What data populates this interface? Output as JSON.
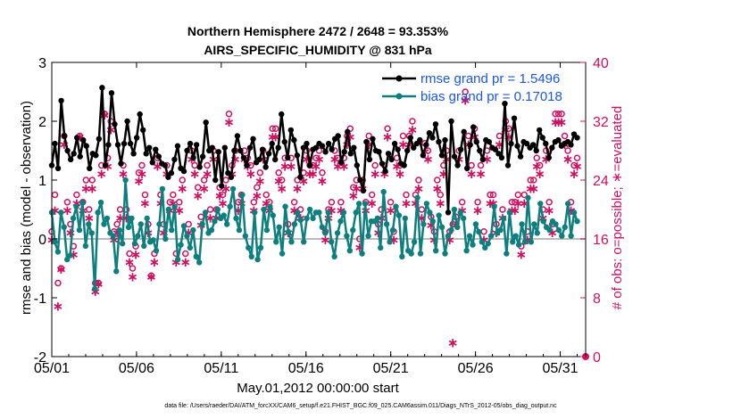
{
  "chart_data": {
    "type": "line",
    "title": "Northern Hemisphere 2472 / 2648 = 93.353%",
    "subtitle": "AIRS_SPECIFIC_HUMIDITY @ 831 hPa",
    "xlabel": "May.01,2012 00:00:00 start",
    "ylabel": "rmse and bias (model - observation)",
    "ylabel_right": "# of obs: o=possible; ∗=evaluated",
    "xlim": [
      0,
      31.5
    ],
    "ylim": [
      -2,
      3
    ],
    "ylim_right": [
      0,
      40
    ],
    "x_tick_labels": [
      "05/01",
      "05/06",
      "05/11",
      "05/16",
      "05/21",
      "05/26",
      "05/31"
    ],
    "y_tick_labels": [
      "-2",
      "-1",
      "0",
      "1",
      "2",
      "3"
    ],
    "y_right_tick_labels": [
      "0",
      "8",
      "16",
      "24",
      "32",
      "40"
    ],
    "legend_position": "top-right",
    "series": [
      {
        "name": "rmse",
        "legend": "rmse grand pr = 1.5496",
        "color": "#000000",
        "values": [
          1.25,
          1.62,
          1.2,
          2.35,
          1.75,
          1.5,
          1.35,
          1.45,
          1.72,
          1.4,
          1.68,
          1.58,
          1.2,
          1.45,
          1.42,
          1.7,
          2.57,
          1.25,
          1.6,
          2.48,
          1.95,
          1.6,
          1.28,
          1.62,
          2.0,
          1.62,
          1.45,
          1.72,
          2.12,
          1.85,
          1.45,
          1.55,
          1.3,
          1.52,
          1.4,
          1.28,
          1.25,
          1.05,
          1.12,
          1.35,
          1.58,
          1.2,
          1.15,
          1.5,
          1.62,
          1.38,
          1.6,
          1.22,
          1.4,
          1.98,
          1.5,
          1.55,
          1.0,
          1.48,
          0.9,
          1.55,
          1.12,
          1.05,
          1.5,
          1.75,
          1.5,
          1.38,
          1.25,
          1.55,
          1.7,
          1.3,
          1.35,
          1.52,
          1.22,
          1.45,
          1.62,
          1.35,
          1.55,
          2.12,
          1.65,
          1.38,
          1.85,
          1.68,
          1.42,
          1.05,
          1.55,
          1.62,
          1.25,
          1.52,
          1.55,
          1.62,
          1.58,
          1.48,
          1.62,
          1.52,
          1.7,
          1.75,
          1.3,
          1.48,
          1.82,
          1.45,
          1.55,
          1.25,
          1.0,
          0.82,
          1.65,
          1.35,
          1.7,
          1.5,
          1.48,
          1.28,
          1.15,
          1.45,
          1.35,
          1.62,
          1.52,
          1.28,
          1.25,
          1.5,
          1.72,
          1.55,
          1.62,
          1.68,
          1.42,
          1.6,
          1.8,
          1.72,
          1.95,
          1.65,
          1.42,
          1.68,
          0.45,
          2.0,
          1.4,
          1.25,
          1.52,
          1.82,
          1.2,
          1.6,
          1.9,
          1.65,
          1.5,
          1.35,
          1.68,
          1.65,
          1.55,
          1.52,
          1.45,
          1.38,
          2.3,
          1.25,
          1.62,
          2.05,
          1.58,
          1.4,
          1.65,
          1.62,
          1.55,
          1.6,
          1.5,
          1.85,
          1.72,
          1.62,
          1.38,
          1.55,
          1.65,
          1.68,
          1.58,
          1.62,
          1.65,
          1.6,
          1.78,
          1.72
        ]
      },
      {
        "name": "bias",
        "legend": "bias grand pr = 0.17018",
        "color": "#0e7f7f",
        "values": [
          0.45,
          -0.05,
          -0.22,
          0.45,
          0.2,
          -0.35,
          -0.28,
          0.35,
          0.55,
          0.15,
          0.62,
          -0.12,
          0.25,
          0.1,
          -0.85,
          0.45,
          0.62,
          0.25,
          0.35,
          0.1,
          0.05,
          -0.55,
          0.15,
          -0.08,
          1.0,
          0.2,
          0.35,
          -0.08,
          0.05,
          0.25,
          -0.12,
          0.35,
          -0.05,
          -0.02,
          -0.2,
          0.25,
          0.85,
          0.0,
          0.5,
          0.15,
          0.55,
          -0.35,
          -0.1,
          0.22,
          0.05,
          -0.15,
          0.15,
          -0.3,
          -0.4,
          0.25,
          0.45,
          0.1,
          0.15,
          0.3,
          0.5,
          0.35,
          0.4,
          0.25,
          0.55,
          0.85,
          0.35,
          0.15,
          0.75,
          0.05,
          -0.15,
          -0.3,
          0.45,
          -0.35,
          -0.15,
          0.5,
          0.15,
          0.55,
          0.4,
          -0.05,
          0.2,
          -0.25,
          0.55,
          0.12,
          -0.05,
          0.25,
          0.45,
          0.32,
          -0.05,
          0.35,
          0.5,
          0.35,
          0.45,
          0.45,
          0.2,
          0.1,
          0.45,
          -0.05,
          -0.3,
          0.1,
          0.3,
          0.45,
          0.05,
          -0.2,
          0.15,
          0.45,
          0.6,
          -0.25,
          0.6,
          0.05,
          0.3,
          0.3,
          0.35,
          -0.15,
          0.8,
          0.25,
          -0.05,
          0.15,
          0.55,
          0.4,
          -0.3,
          0.35,
          -0.2,
          -0.25,
          -0.05,
          0.7,
          -0.25,
          0.25,
          0.6,
          0.45,
          0.3,
          -0.2,
          0.4,
          0.2,
          -0.25,
          0.05,
          0.15,
          0.5,
          0.2,
          0.45,
          0.35,
          -0.2,
          0.05,
          -0.1,
          0.25,
          0.12,
          -0.05,
          -0.15,
          -0.08,
          0.05,
          0.55,
          0.1,
          0.15,
          0.35,
          -0.25,
          0.45,
          -0.05,
          0.05,
          -0.1,
          0.25,
          -0.05,
          0.7,
          -0.05,
          0.25,
          0.1,
          0.6,
          0.3,
          0.2,
          0.15,
          0.3,
          0.25,
          0.15,
          0.05,
          0.2,
          0.6,
          0.05,
          0.45,
          0.3
        ]
      },
      {
        "name": "obs possible",
        "color": "#d01060",
        "axis": "right",
        "marker": "o",
        "values": [
          17,
          22,
          10,
          12,
          30,
          21,
          18,
          15,
          22,
          30,
          21,
          24,
          20,
          24,
          10,
          10,
          26,
          33,
          27,
          32,
          17,
          18,
          20,
          26,
          20,
          14,
          12,
          15,
          25,
          26,
          22,
          18,
          11,
          14,
          27,
          22,
          18,
          26,
          21,
          22,
          14,
          21,
          24,
          14,
          18,
          28,
          26,
          23,
          19,
          24,
          26,
          20,
          28,
          20,
          23,
          22,
          24,
          33,
          26,
          28,
          21,
          22,
          28,
          27,
          26,
          21,
          23,
          25,
          28,
          22,
          21,
          31,
          31,
          25,
          24,
          27,
          18,
          27,
          21,
          24,
          20,
          25,
          28,
          26,
          26,
          27,
          28,
          25,
          17,
          20,
          21,
          28,
          27,
          21,
          27,
          30,
          31,
          23,
          24,
          16,
          24,
          21,
          30,
          22,
          26,
          18,
          20,
          26,
          31,
          21,
          17,
          27,
          26,
          30,
          22,
          30,
          32,
          22,
          24,
          20,
          29,
          28,
          19,
          17,
          24,
          22,
          26,
          28,
          17,
          18,
          19,
          28,
          21,
          36,
          30,
          26,
          31,
          21,
          26,
          17,
          28,
          22,
          22,
          18,
          30,
          20,
          32,
          31,
          21,
          21,
          22,
          15,
          22,
          17,
          24,
          24,
          27,
          26,
          20,
          28,
          21,
          18,
          33,
          33,
          33,
          30,
          28,
          21,
          26,
          27
        ]
      },
      {
        "name": "obs evaluated",
        "color": "#d01060",
        "axis": "right",
        "marker": "*",
        "values": [
          16,
          20,
          7,
          12,
          29,
          20,
          17,
          14,
          21,
          30,
          20,
          23,
          19,
          23,
          9,
          10,
          25,
          33,
          26,
          31,
          16,
          17,
          19,
          25,
          19,
          13,
          11,
          14,
          24,
          25,
          21,
          17,
          11,
          13,
          26,
          21,
          17,
          25,
          20,
          21,
          13,
          20,
          23,
          13,
          17,
          27,
          25,
          22,
          18,
          23,
          25,
          19,
          27,
          19,
          22,
          21,
          23,
          32,
          25,
          27,
          20,
          21,
          27,
          26,
          25,
          20,
          22,
          24,
          27,
          21,
          20,
          30,
          30,
          24,
          23,
          26,
          17,
          26,
          20,
          23,
          19,
          24,
          27,
          25,
          25,
          26,
          27,
          24,
          16,
          19,
          20,
          27,
          26,
          20,
          26,
          29,
          30,
          22,
          23,
          15,
          23,
          20,
          29,
          21,
          25,
          17,
          19,
          25,
          30,
          20,
          16,
          26,
          25,
          29,
          21,
          29,
          31,
          21,
          23,
          19,
          28,
          27,
          18,
          16,
          23,
          21,
          25,
          27,
          16,
          2,
          18,
          27,
          20,
          35,
          29,
          25,
          30,
          20,
          25,
          16,
          27,
          21,
          21,
          17,
          29,
          19,
          31,
          30,
          20,
          20,
          21,
          14,
          21,
          16,
          23,
          23,
          26,
          25,
          19,
          27,
          20,
          17,
          32,
          32,
          32,
          29,
          27,
          20,
          25,
          26
        ]
      }
    ]
  },
  "footer": {
    "file_text": "data file: /Users/raeder/DAI/ATM_forcXX/CAM6_setup/f.e21.FHIST_BGC.f09_025.CAM6assim.011/Diags_NTrS_2012-05/obs_diag_output.nc"
  }
}
